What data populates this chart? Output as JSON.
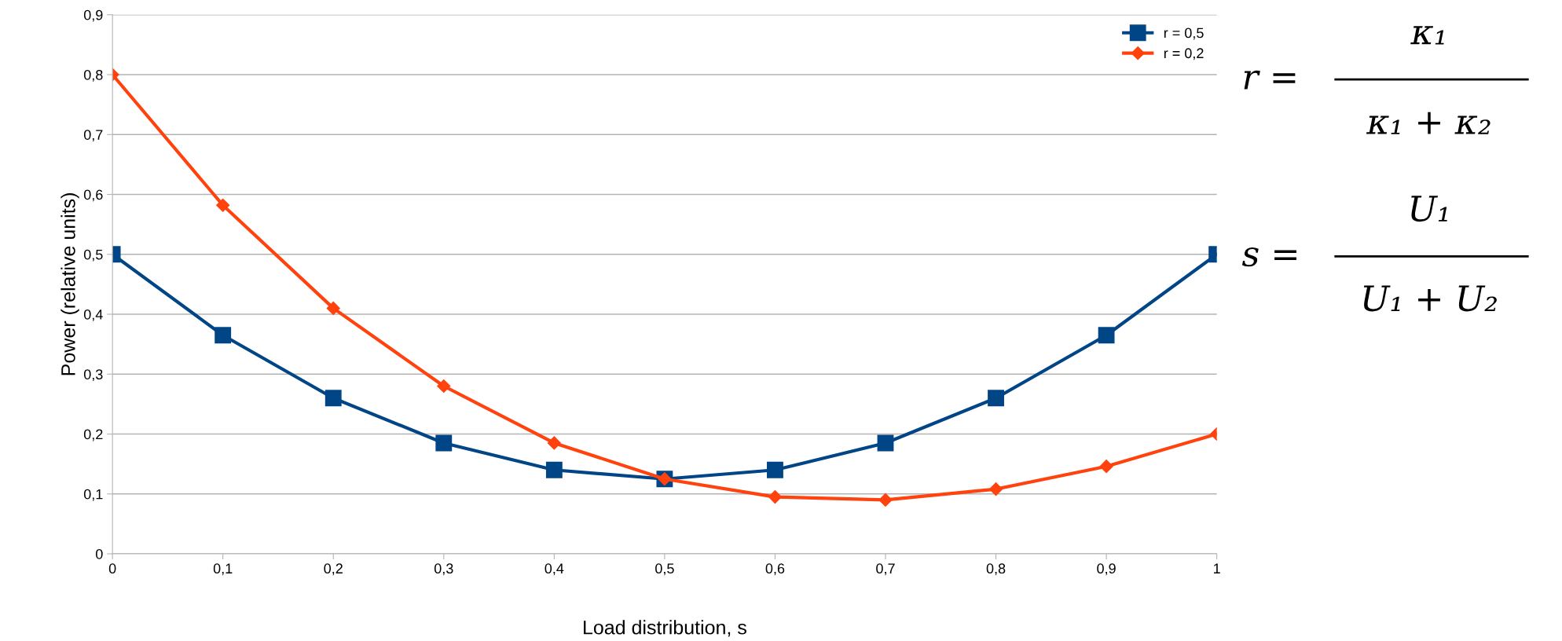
{
  "chart_data": {
    "type": "line",
    "xlabel": "Load distribution, s",
    "ylabel": "Power (relative units)",
    "x": [
      0,
      0.1,
      0.2,
      0.3,
      0.4,
      0.5,
      0.6,
      0.7,
      0.8,
      0.9,
      1
    ],
    "series": [
      {
        "name": "r = 0,5",
        "color": "#004586",
        "marker": "square",
        "values": [
          0.5,
          0.365,
          0.26,
          0.185,
          0.14,
          0.125,
          0.14,
          0.185,
          0.26,
          0.365,
          0.5
        ]
      },
      {
        "name": "r = 0,2",
        "color": "#ff420e",
        "marker": "diamond",
        "values": [
          0.8,
          0.582,
          0.41,
          0.28,
          0.185,
          0.125,
          0.095,
          0.09,
          0.108,
          0.146,
          0.2
        ]
      }
    ],
    "xlim": [
      0,
      1
    ],
    "ylim": [
      0,
      0.9
    ],
    "xticks": [
      0,
      {
        "value": 0.1,
        "label": "0,1"
      },
      {
        "value": 0.2,
        "label": "0,2"
      },
      {
        "value": 0.3,
        "label": "0,3"
      },
      {
        "value": 0.4,
        "label": "0,4"
      },
      {
        "value": 0.5,
        "label": "0,5"
      },
      {
        "value": 0.6,
        "label": "0,6"
      },
      {
        "value": 0.7,
        "label": "0,7"
      },
      {
        "value": 0.8,
        "label": "0,8"
      },
      {
        "value": 0.9,
        "label": "0,9"
      },
      1
    ],
    "yticks": [
      0,
      {
        "value": 0.1,
        "label": "0,1"
      },
      {
        "value": 0.2,
        "label": "0,2"
      },
      {
        "value": 0.3,
        "label": "0,3"
      },
      {
        "value": 0.4,
        "label": "0,4"
      },
      {
        "value": 0.5,
        "label": "0,5"
      },
      {
        "value": 0.6,
        "label": "0,6"
      },
      {
        "value": 0.7,
        "label": "0,7"
      },
      {
        "value": 0.8,
        "label": "0,8"
      },
      {
        "value": 0.9,
        "label": "0,9"
      }
    ],
    "grid": "y",
    "legend": "top right",
    "line_style": "solid",
    "annotations": [
      "r =",
      "κ₁",
      "κ₁ + κ₂",
      "s =",
      "U₁",
      "U₁ + U₂"
    ]
  }
}
